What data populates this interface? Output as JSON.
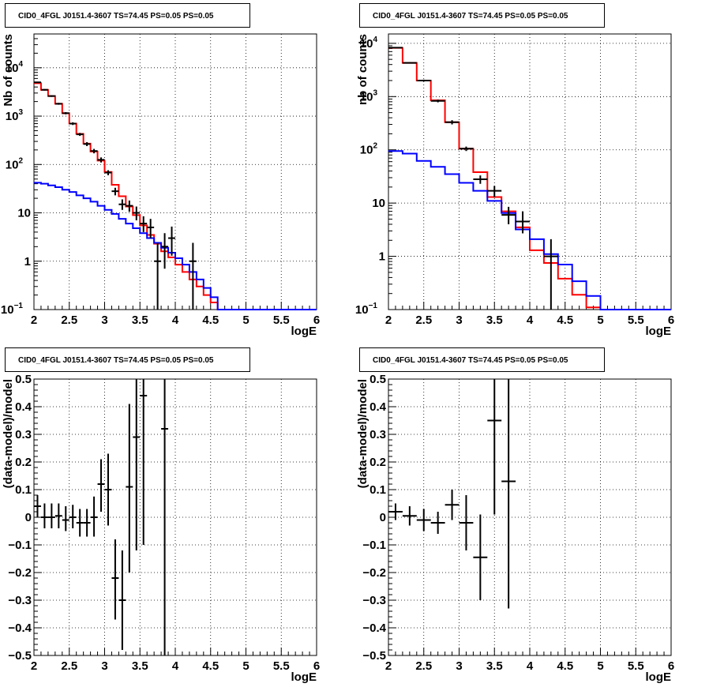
{
  "chart_data": [
    {
      "type": "line",
      "panel": "top-left",
      "title": "CID0_4FGL J0151.4-3607 TS=74.45 PS=0.05 PS=0.05",
      "xlabel": "logE",
      "ylabel": "Nb of counts",
      "xlim": [
        2,
        6
      ],
      "ylim": [
        0.1,
        50000
      ],
      "log_y": true,
      "grid": true,
      "x_ticks": [
        "2",
        "2.5",
        "3",
        "3.5",
        "4",
        "4.5",
        "5",
        "5.5",
        "6"
      ],
      "y_ticks": [
        {
          "value": 0.1,
          "base": "10",
          "exp": "−1"
        },
        {
          "value": 1,
          "base": "1",
          "exp": ""
        },
        {
          "value": 10,
          "base": "10",
          "exp": ""
        },
        {
          "value": 100,
          "base": "10",
          "exp": "2"
        },
        {
          "value": 1000,
          "base": "10",
          "exp": "3"
        },
        {
          "value": 10000,
          "base": "10",
          "exp": "4"
        }
      ],
      "bin_edges": [
        2.0,
        2.1,
        2.2,
        2.3,
        2.4,
        2.5,
        2.6,
        2.7,
        2.8,
        2.9,
        3.0,
        3.1,
        3.2,
        3.3,
        3.4,
        3.5,
        3.6,
        3.7,
        3.8,
        3.9,
        4.0,
        4.1,
        4.2,
        4.3,
        4.4,
        4.5,
        4.6,
        4.7,
        4.8,
        4.9,
        5.0,
        5.1,
        5.2,
        5.3,
        5.4,
        5.5,
        5.6,
        5.7,
        5.8,
        5.9,
        6.0
      ],
      "series": [
        {
          "color": "#ff0000",
          "kind": "step",
          "values": [
            4800,
            3500,
            2600,
            1800,
            1150,
            700,
            430,
            270,
            185,
            120,
            70,
            38,
            22,
            13.5,
            9,
            5.5,
            3.5,
            2.3,
            1.6,
            1.2,
            0.85,
            0.6,
            0.42,
            0.3,
            0.2,
            0.14,
            0.1,
            0.1,
            0.1,
            0.1,
            0.1,
            0.1,
            0.1,
            0.1,
            0.1,
            0.1,
            0.1,
            0.1,
            0.1,
            0.1
          ]
        },
        {
          "color": "#0000ff",
          "kind": "step",
          "values": [
            42,
            40,
            37,
            34,
            30,
            27,
            23,
            20,
            17,
            14,
            11.5,
            9.5,
            7.5,
            6,
            4.8,
            3.8,
            3.0,
            2.4,
            1.9,
            1.5,
            1.15,
            0.85,
            0.6,
            0.42,
            0.28,
            0.18,
            0.1,
            0.1,
            0.1,
            0.1,
            0.1,
            0.1,
            0.1,
            0.1,
            0.1,
            0.1,
            0.1,
            0.1,
            0.1,
            0.1
          ]
        },
        {
          "color": "#000000",
          "kind": "points",
          "points": [
            {
              "x": 2.05,
              "y": 5000,
              "lo": 4860,
              "hi": 5140
            },
            {
              "x": 2.15,
              "y": 3500,
              "lo": 3380,
              "hi": 3620
            },
            {
              "x": 2.25,
              "y": 2600,
              "lo": 2500,
              "hi": 2700
            },
            {
              "x": 2.35,
              "y": 1800,
              "lo": 1720,
              "hi": 1880
            },
            {
              "x": 2.45,
              "y": 1150,
              "lo": 1090,
              "hi": 1210
            },
            {
              "x": 2.55,
              "y": 700,
              "lo": 655,
              "hi": 745
            },
            {
              "x": 2.65,
              "y": 420,
              "lo": 390,
              "hi": 450
            },
            {
              "x": 2.75,
              "y": 265,
              "lo": 240,
              "hi": 290
            },
            {
              "x": 2.85,
              "y": 190,
              "lo": 170,
              "hi": 210
            },
            {
              "x": 2.95,
              "y": 125,
              "lo": 110,
              "hi": 140
            },
            {
              "x": 3.05,
              "y": 68,
              "lo": 60,
              "hi": 76
            },
            {
              "x": 3.15,
              "y": 28,
              "lo": 23,
              "hi": 33
            },
            {
              "x": 3.25,
              "y": 15,
              "lo": 11.5,
              "hi": 19
            },
            {
              "x": 3.35,
              "y": 14,
              "lo": 10.5,
              "hi": 18
            },
            {
              "x": 3.45,
              "y": 10,
              "lo": 7,
              "hi": 13.5
            },
            {
              "x": 3.55,
              "y": 6,
              "lo": 4,
              "hi": 8.5
            },
            {
              "x": 3.65,
              "y": 5,
              "lo": 3,
              "hi": 7.5
            },
            {
              "x": 3.75,
              "y": 1,
              "lo": 0.1,
              "hi": 2.4
            },
            {
              "x": 3.85,
              "y": 2,
              "lo": 0.7,
              "hi": 3.8
            },
            {
              "x": 3.95,
              "y": 3,
              "lo": 1.3,
              "hi": 5.2
            },
            {
              "x": 4.25,
              "y": 1,
              "lo": 0.1,
              "hi": 2.4
            }
          ]
        }
      ]
    },
    {
      "type": "line",
      "panel": "top-right",
      "title": "CID0_4FGL J0151.4-3607 TS=74.45 PS=0.05 PS=0.05",
      "xlabel": "logE",
      "ylabel": "nb of counts",
      "xlim": [
        2,
        6
      ],
      "ylim": [
        0.1,
        15000
      ],
      "log_y": true,
      "grid": true,
      "x_ticks": [
        "2",
        "2.5",
        "3",
        "3.5",
        "4",
        "4.5",
        "5",
        "5.5",
        "6"
      ],
      "y_ticks": [
        {
          "value": 0.1,
          "base": "10",
          "exp": "−1"
        },
        {
          "value": 1,
          "base": "1",
          "exp": ""
        },
        {
          "value": 10,
          "base": "10",
          "exp": ""
        },
        {
          "value": 100,
          "base": "10",
          "exp": "2"
        },
        {
          "value": 1000,
          "base": "10",
          "exp": "3"
        },
        {
          "value": 10000,
          "base": "10",
          "exp": "4"
        }
      ],
      "bin_edges": [
        2.0,
        2.2,
        2.4,
        2.6,
        2.8,
        3.0,
        3.2,
        3.4,
        3.6,
        3.8,
        4.0,
        4.2,
        4.4,
        4.6,
        4.8,
        5.0,
        5.2,
        5.4,
        5.6,
        5.8,
        6.0
      ],
      "series": [
        {
          "color": "#ff0000",
          "kind": "step",
          "values": [
            8200,
            4300,
            2000,
            850,
            330,
            105,
            38,
            13,
            7,
            3.5,
            1.3,
            0.75,
            0.38,
            0.19,
            0.11,
            0.1,
            0.1,
            0.1,
            0.1,
            0.1
          ]
        },
        {
          "color": "#0000ff",
          "kind": "step",
          "values": [
            95,
            85,
            62,
            48,
            35,
            24,
            17,
            11,
            6.5,
            3.2,
            2.1,
            1.1,
            0.7,
            0.34,
            0.18,
            0.1,
            0.1,
            0.1,
            0.1,
            0.1
          ]
        },
        {
          "color": "#000000",
          "kind": "points",
          "points": [
            {
              "x": 2.1,
              "y": 8300,
              "lo": 8100,
              "hi": 8500
            },
            {
              "x": 2.3,
              "y": 4300,
              "lo": 4180,
              "hi": 4420
            },
            {
              "x": 2.5,
              "y": 2000,
              "lo": 1920,
              "hi": 2080
            },
            {
              "x": 2.7,
              "y": 830,
              "lo": 780,
              "hi": 880
            },
            {
              "x": 2.9,
              "y": 330,
              "lo": 300,
              "hi": 360
            },
            {
              "x": 3.1,
              "y": 105,
              "lo": 95,
              "hi": 115
            },
            {
              "x": 3.3,
              "y": 28,
              "lo": 23,
              "hi": 33
            },
            {
              "x": 3.5,
              "y": 17,
              "lo": 13,
              "hi": 21
            },
            {
              "x": 3.7,
              "y": 6,
              "lo": 4,
              "hi": 8.5
            },
            {
              "x": 3.9,
              "y": 4.5,
              "lo": 2.7,
              "hi": 7
            },
            {
              "x": 4.3,
              "y": 1,
              "lo": 0.1,
              "hi": 2.1
            }
          ]
        }
      ]
    },
    {
      "type": "scatter",
      "panel": "bottom-left",
      "title": "CID0_4FGL J0151.4-3607 TS=74.45 PS=0.05 PS=0.05",
      "xlabel": "logE",
      "ylabel": "(data-model)/model",
      "xlim": [
        2,
        6
      ],
      "ylim": [
        -0.5,
        0.5
      ],
      "grid": true,
      "x_ticks": [
        "2",
        "2.5",
        "3",
        "3.5",
        "4",
        "4.5",
        "5",
        "5.5",
        "6"
      ],
      "y_ticks": [
        "−0.5",
        "−0.4",
        "−0.3",
        "−0.2",
        "−0.1",
        "0",
        "0.1",
        "0.2",
        "0.3",
        "0.4",
        "0.5"
      ],
      "xerr": 0.05,
      "points": [
        {
          "x": 2.05,
          "y": 0.04,
          "lo": 0.0,
          "hi": 0.08
        },
        {
          "x": 2.15,
          "y": 0.0,
          "lo": -0.04,
          "hi": 0.05
        },
        {
          "x": 2.25,
          "y": 0.0,
          "lo": -0.04,
          "hi": 0.05
        },
        {
          "x": 2.35,
          "y": 0.005,
          "lo": -0.04,
          "hi": 0.05
        },
        {
          "x": 2.45,
          "y": -0.01,
          "lo": -0.05,
          "hi": 0.04
        },
        {
          "x": 2.55,
          "y": 0.0,
          "lo": -0.04,
          "hi": 0.045
        },
        {
          "x": 2.65,
          "y": -0.02,
          "lo": -0.07,
          "hi": 0.03
        },
        {
          "x": 2.75,
          "y": -0.02,
          "lo": -0.07,
          "hi": 0.03
        },
        {
          "x": 2.85,
          "y": 0.0,
          "lo": -0.07,
          "hi": 0.075
        },
        {
          "x": 2.95,
          "y": 0.12,
          "lo": 0.02,
          "hi": 0.21
        },
        {
          "x": 3.05,
          "y": 0.1,
          "lo": -0.03,
          "hi": 0.23
        },
        {
          "x": 3.15,
          "y": -0.22,
          "lo": -0.37,
          "hi": -0.08
        },
        {
          "x": 3.25,
          "y": -0.3,
          "lo": -0.48,
          "hi": -0.12
        },
        {
          "x": 3.35,
          "y": 0.11,
          "lo": -0.2,
          "hi": 0.41
        },
        {
          "x": 3.45,
          "y": 0.29,
          "lo": -0.12,
          "hi": 0.5
        },
        {
          "x": 3.55,
          "y": 0.44,
          "lo": -0.1,
          "hi": 0.5
        },
        {
          "x": 3.85,
          "y": 0.32,
          "lo": -0.5,
          "hi": 0.5
        }
      ]
    },
    {
      "type": "scatter",
      "panel": "bottom-right",
      "title": "CID0_4FGL J0151.4-3607 TS=74.45 PS=0.05 PS=0.05",
      "xlabel": "logE",
      "ylabel": "(data-model)/model",
      "xlim": [
        2,
        6
      ],
      "ylim": [
        -0.5,
        0.5
      ],
      "grid": true,
      "x_ticks": [
        "2",
        "2.5",
        "3",
        "3.5",
        "4",
        "4.5",
        "5",
        "5.5",
        "6"
      ],
      "y_ticks": [
        "−0.5",
        "−0.4",
        "−0.3",
        "−0.2",
        "−0.1",
        "0",
        "0.1",
        "0.2",
        "0.3",
        "0.4",
        "0.5"
      ],
      "xerr": 0.1,
      "points": [
        {
          "x": 2.1,
          "y": 0.02,
          "lo": -0.01,
          "hi": 0.05
        },
        {
          "x": 2.3,
          "y": 0.005,
          "lo": -0.03,
          "hi": 0.04
        },
        {
          "x": 2.5,
          "y": -0.01,
          "lo": -0.05,
          "hi": 0.03
        },
        {
          "x": 2.7,
          "y": -0.02,
          "lo": -0.06,
          "hi": 0.02
        },
        {
          "x": 2.9,
          "y": 0.045,
          "lo": -0.01,
          "hi": 0.1
        },
        {
          "x": 3.1,
          "y": -0.02,
          "lo": -0.12,
          "hi": 0.08
        },
        {
          "x": 3.3,
          "y": -0.145,
          "lo": -0.3,
          "hi": 0.01
        },
        {
          "x": 3.5,
          "y": 0.35,
          "lo": 0.01,
          "hi": 0.5
        },
        {
          "x": 3.7,
          "y": 0.13,
          "lo": -0.33,
          "hi": 0.5
        }
      ]
    }
  ]
}
